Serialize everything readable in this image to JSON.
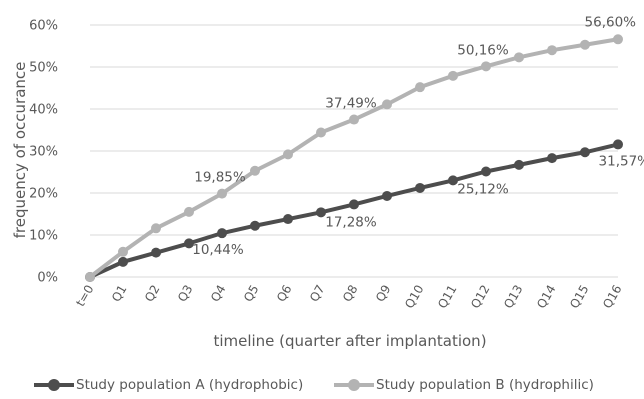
{
  "chart_data": {
    "type": "line",
    "x": [
      "t=0",
      "Q1",
      "Q2",
      "Q3",
      "Q4",
      "Q5",
      "Q6",
      "Q7",
      "Q8",
      "Q9",
      "Q10",
      "Q11",
      "Q12",
      "Q13",
      "Q14",
      "Q15",
      "Q16"
    ],
    "xlabel": "timeline (quarter after implantation)",
    "ylabel": "frequency of occurance",
    "ylim": [
      0,
      60
    ],
    "yticks": [
      "0%",
      "10%",
      "20%",
      "30%",
      "40%",
      "50%",
      "60%"
    ],
    "grid": true,
    "legend_position": "bottom",
    "series": [
      {
        "name": "Study population A (hydrophobic)",
        "color": "#4d4d4d",
        "values": [
          0,
          3.6,
          5.8,
          8.0,
          10.44,
          12.2,
          13.8,
          15.4,
          17.28,
          19.3,
          21.2,
          23.0,
          25.12,
          26.7,
          28.3,
          29.7,
          31.57
        ],
        "data_labels": [
          {
            "index": 4,
            "text": "10,44%"
          },
          {
            "index": 8,
            "text": "17,28%"
          },
          {
            "index": 12,
            "text": "25,12%"
          },
          {
            "index": 16,
            "text": "31,57%"
          }
        ]
      },
      {
        "name": "Study population B (hydrophilic)",
        "color": "#b3b3b3",
        "values": [
          0,
          6.0,
          11.6,
          15.5,
          19.85,
          25.3,
          29.2,
          34.4,
          37.49,
          41.1,
          45.2,
          47.9,
          50.16,
          52.3,
          54.0,
          55.3,
          56.6
        ],
        "data_labels": [
          {
            "index": 4,
            "text": "19,85%"
          },
          {
            "index": 8,
            "text": "37,49%"
          },
          {
            "index": 12,
            "text": "50,16%"
          },
          {
            "index": 16,
            "text": "56,60%"
          }
        ]
      }
    ]
  }
}
